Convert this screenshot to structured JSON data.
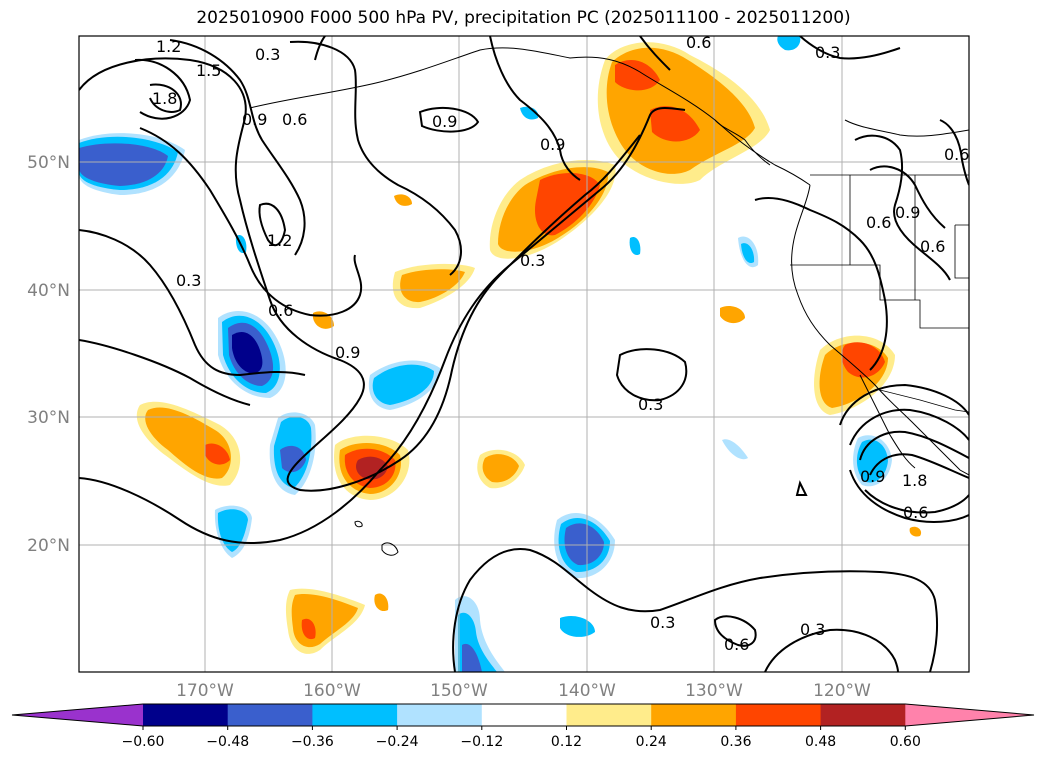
{
  "title": "2025010900 F000 500 hPa PV, precipitation PC (2025011100 - 2025011200)",
  "lat_ticks": [
    "50°N",
    "40°N",
    "30°N",
    "20°N"
  ],
  "lon_ticks": [
    "170°W",
    "160°W",
    "150°W",
    "140°W",
    "130°W",
    "120°W"
  ],
  "colorbar": {
    "labels": [
      "−0.60",
      "−0.48",
      "−0.36",
      "−0.24",
      "−0.12",
      "0.12",
      "0.24",
      "0.36",
      "0.48",
      "0.60"
    ],
    "colors": [
      "#9a32cd",
      "#00008b",
      "#3a5fcd",
      "#00bfff",
      "#b0e2ff",
      "#ffffff",
      "#ffec8b",
      "#ffa500",
      "#ff4500",
      "#b22222",
      "#ff82ab"
    ]
  },
  "contour_labels": [
    "1.2",
    "0.3",
    "1.5",
    "1.8",
    "0.9",
    "0.6",
    "0.6",
    "1.2",
    "0.9",
    "0.3",
    "0.6",
    "0.9",
    "0.3",
    "0.6",
    "0.3",
    "0.9",
    "0.6",
    "0.9",
    "0.3",
    "0.6",
    "0.3",
    "0.6",
    "0.3",
    "1.8",
    "0.6",
    "0.9"
  ],
  "colors": {
    "grid": "#b0b0b0",
    "contour": "#000000",
    "coast": "#000000"
  }
}
